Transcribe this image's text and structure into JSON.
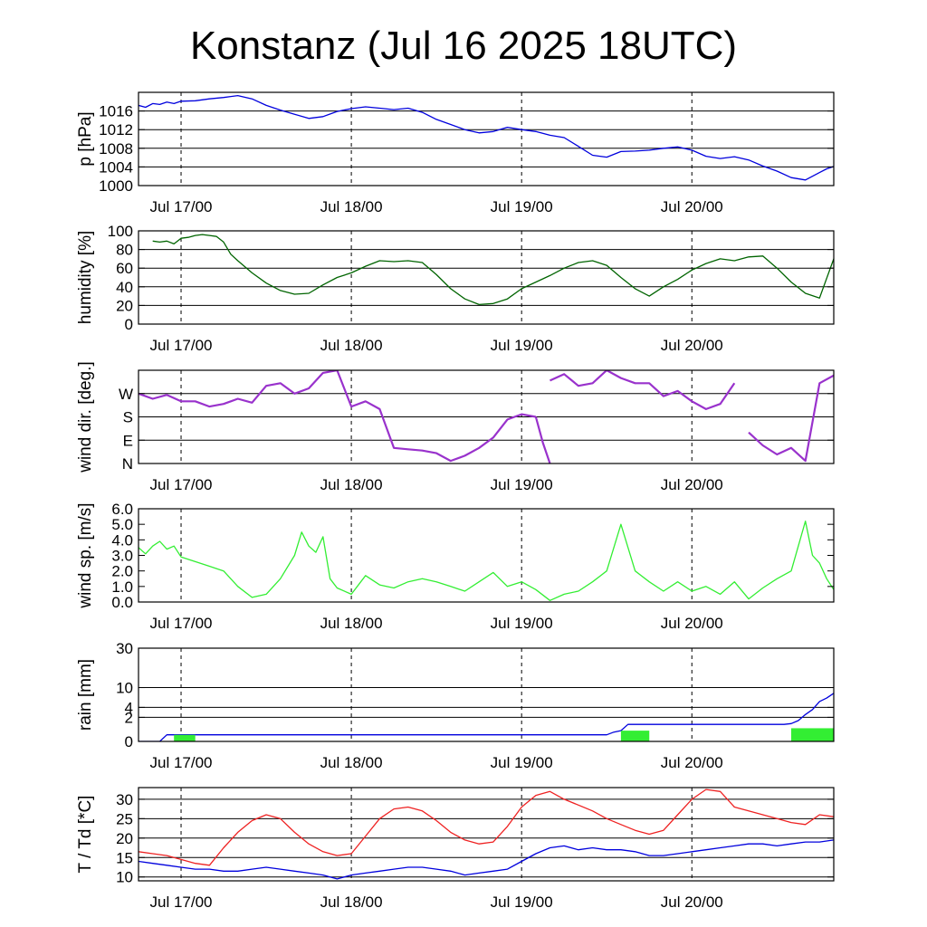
{
  "title": "Konstanz (Jul 16 2025 18UTC)",
  "colors": {
    "pressure": "#0000dd",
    "humidity": "#006400",
    "wind_dir": "#9932cc",
    "wind_speed": "#33ee33",
    "rain_accum": "#0000dd",
    "rain_bars": "#33ee33",
    "temperature": "#ee2222",
    "dewpoint": "#0000dd",
    "grid": "#000000"
  },
  "chart_data": [
    {
      "id": "pressure",
      "type": "line",
      "ylabel": "p [hPa]",
      "ylim": [
        1000,
        1020
      ],
      "yticks": [
        1000,
        1004,
        1008,
        1012,
        1016
      ],
      "ytick_labels": [
        "1000",
        "1004",
        "1008",
        "1012",
        "1016"
      ],
      "grid": "horizontal",
      "xlabels": [
        "Jul 17/00",
        "Jul 18/00",
        "Jul 19/00",
        "Jul 20/00"
      ],
      "series": [
        {
          "color": "#0000dd",
          "x": [
            -6,
            -5,
            -4,
            -3,
            -2,
            -1,
            0,
            2,
            4,
            6,
            8,
            10,
            12,
            14,
            16,
            18,
            20,
            22,
            24,
            26,
            28,
            30,
            32,
            34,
            36,
            38,
            40,
            42,
            44,
            46,
            48,
            50,
            52,
            54,
            56,
            58,
            60,
            62,
            64,
            66,
            68,
            70,
            72,
            74,
            76,
            78,
            80,
            82,
            84,
            86,
            88,
            90,
            91,
            92
          ],
          "y": [
            1017.2,
            1016.8,
            1017.6,
            1017.4,
            1017.9,
            1017.6,
            1018.1,
            1018.2,
            1018.6,
            1018.9,
            1019.3,
            1018.6,
            1017.2,
            1016.2,
            1015.3,
            1014.4,
            1014.8,
            1015.9,
            1016.5,
            1016.9,
            1016.6,
            1016.3,
            1016.6,
            1015.7,
            1014.2,
            1013.1,
            1012.0,
            1011.3,
            1011.6,
            1012.5,
            1012.0,
            1011.6,
            1010.8,
            1010.3,
            1008.4,
            1006.5,
            1006.1,
            1007.3,
            1007.4,
            1007.6,
            1008.0,
            1008.3,
            1007.6,
            1006.3,
            1005.8,
            1006.2,
            1005.5,
            1004.2,
            1003.1,
            1001.7,
            1001.2,
            1002.8,
            1003.6,
            1004.1
          ]
        }
      ]
    },
    {
      "id": "humidity",
      "type": "line",
      "ylabel": "humidity [%]",
      "ylim": [
        0,
        100
      ],
      "yticks": [
        0,
        20,
        40,
        60,
        80,
        100
      ],
      "ytick_labels": [
        "0",
        "20",
        "40",
        "60",
        "80",
        "100"
      ],
      "grid": "horizontal",
      "xlabels": [
        "Jul 17/00",
        "Jul 18/00",
        "Jul 19/00",
        "Jul 20/00"
      ],
      "series": [
        {
          "color": "#006400",
          "x": [
            -4,
            -3,
            -2,
            -1,
            0,
            1,
            2,
            3,
            4,
            5,
            6,
            7,
            8,
            10,
            12,
            14,
            16,
            18,
            20,
            22,
            24,
            26,
            28,
            30,
            32,
            34,
            36,
            38,
            40,
            42,
            44,
            46,
            48,
            50,
            52,
            54,
            56,
            58,
            60,
            62,
            64,
            66,
            68,
            70,
            72,
            74,
            76,
            78,
            80,
            82,
            84,
            86,
            88,
            90,
            92
          ],
          "y": [
            89,
            88,
            89,
            86,
            92,
            93,
            95,
            96,
            95,
            94,
            88,
            75,
            68,
            55,
            44,
            36,
            32,
            33,
            42,
            50,
            55,
            62,
            68,
            67,
            68,
            66,
            53,
            38,
            27,
            21,
            22,
            27,
            38,
            45,
            52,
            60,
            66,
            68,
            63,
            50,
            38,
            30,
            40,
            48,
            58,
            65,
            70,
            68,
            72,
            73,
            60,
            45,
            33,
            28,
            70
          ]
        }
      ]
    },
    {
      "id": "wind_direction",
      "type": "scatter",
      "ylabel": "wind dir. [deg.]",
      "ylim": [
        0,
        360
      ],
      "yticks": [
        0,
        90,
        180,
        270
      ],
      "ytick_labels": [
        "N",
        "E",
        "S",
        "W"
      ],
      "grid": "horizontal",
      "xlabels": [
        "Jul 17/00",
        "Jul 18/00",
        "Jul 19/00",
        "Jul 20/00"
      ],
      "series": [
        {
          "color": "#9932cc",
          "segments": [
            {
              "x": [
                -6,
                -4,
                -2,
                0,
                2,
                4,
                6,
                8,
                10,
                12,
                14,
                16,
                18,
                20,
                22,
                24,
                26,
                28,
                30,
                32,
                34,
                36,
                38,
                40,
                42,
                44,
                46,
                48,
                50
              ],
              "y": [
                270,
                250,
                265,
                240,
                240,
                220,
                230,
                250,
                235,
                300,
                310,
                270,
                290,
                350,
                360,
                220,
                240,
                210,
                60,
                55,
                50,
                40,
                10,
                30,
                60,
                100,
                170,
                190,
                180
              ]
            },
            {
              "x": [
                50,
                51,
                52
              ],
              "y": [
                180,
                80,
                0
              ]
            },
            {
              "x": [
                52,
                54,
                56,
                58,
                60,
                62,
                64,
                66,
                68,
                70,
                72,
                74,
                76,
                78
              ],
              "y": [
                320,
                345,
                300,
                310,
                360,
                330,
                310,
                310,
                260,
                280,
                240,
                210,
                230,
                310
              ]
            },
            {
              "x": [
                80,
                82,
                84,
                86,
                88,
                90,
                92
              ],
              "y": [
                120,
                70,
                35,
                60,
                10,
                310,
                340
              ]
            }
          ]
        }
      ]
    },
    {
      "id": "wind_speed",
      "type": "line",
      "ylabel": "wind sp. [m/s]",
      "ylim": [
        0,
        6
      ],
      "yticks": [
        0,
        1,
        2,
        3,
        4,
        5,
        6
      ],
      "ytick_labels": [
        "0.0",
        "1.0",
        "2.0",
        "3.0",
        "4.0",
        "5.0",
        "6.0"
      ],
      "grid": "none",
      "xlabels": [
        "Jul 17/00",
        "Jul 18/00",
        "Jul 19/00",
        "Jul 20/00"
      ],
      "series": [
        {
          "color": "#33ee33",
          "x": [
            -6,
            -5,
            -4,
            -3,
            -2,
            -1,
            0,
            2,
            4,
            6,
            8,
            10,
            12,
            14,
            16,
            17,
            18,
            19,
            20,
            21,
            22,
            24,
            26,
            28,
            30,
            32,
            34,
            36,
            38,
            40,
            42,
            44,
            46,
            48,
            50,
            52,
            54,
            56,
            58,
            60,
            62,
            64,
            66,
            68,
            70,
            72,
            74,
            76,
            78,
            80,
            82,
            84,
            86,
            88,
            89,
            90,
            91,
            92
          ],
          "y": [
            3.5,
            3.1,
            3.6,
            3.9,
            3.4,
            3.6,
            2.9,
            2.6,
            2.3,
            2.0,
            1.0,
            0.3,
            0.5,
            1.5,
            3.0,
            4.5,
            3.6,
            3.2,
            4.2,
            1.5,
            0.9,
            0.5,
            1.7,
            1.1,
            0.9,
            1.3,
            1.5,
            1.3,
            1.0,
            0.7,
            1.3,
            1.9,
            1.0,
            1.3,
            0.8,
            0.1,
            0.5,
            0.7,
            1.3,
            2.0,
            5.0,
            2.0,
            1.3,
            0.7,
            1.3,
            0.7,
            1.0,
            0.5,
            1.3,
            0.2,
            0.9,
            1.5,
            2.0,
            5.2,
            3.0,
            2.5,
            1.5,
            0.8
          ]
        }
      ]
    },
    {
      "id": "rain",
      "type": "line",
      "ylabel": "rain [mm]",
      "ylim": [
        0,
        30
      ],
      "yticks": [
        0,
        2,
        4,
        10,
        30
      ],
      "ytick_labels": [
        "0",
        "2",
        "4",
        "10",
        "30"
      ],
      "scale": "sqrt",
      "grid": "horizontal",
      "xlabels": [
        "Jul 17/00",
        "Jul 18/00",
        "Jul 19/00",
        "Jul 20/00"
      ],
      "series": [
        {
          "color": "#0000dd",
          "x": [
            -6,
            -3,
            -2,
            0,
            60,
            61,
            62,
            63,
            64,
            85,
            86,
            87,
            88,
            89,
            90,
            91,
            92
          ],
          "y": [
            0,
            0,
            0.15,
            0.15,
            0.15,
            0.3,
            0.4,
            1.0,
            1.0,
            1.0,
            1.1,
            1.5,
            2.5,
            3.5,
            5.5,
            6.5,
            8.0
          ]
        },
        {
          "type": "bar",
          "color": "#33ee33",
          "x0": [
            -1,
            62,
            86
          ],
          "x1": [
            2,
            66,
            92
          ],
          "y": [
            0.15,
            0.4,
            0.6
          ]
        }
      ]
    },
    {
      "id": "temperature",
      "type": "line",
      "ylabel": "T / Td [*C]",
      "ylim": [
        9,
        33
      ],
      "yticks": [
        10,
        15,
        20,
        25,
        30
      ],
      "ytick_labels": [
        "10",
        "15",
        "20",
        "25",
        "30"
      ],
      "grid": "horizontal",
      "xlabels": [
        "Jul 17/00",
        "Jul 18/00",
        "Jul 19/00",
        "Jul 20/00"
      ],
      "series": [
        {
          "name": "T",
          "color": "#ee2222",
          "x": [
            -6,
            -4,
            -2,
            0,
            2,
            4,
            6,
            8,
            10,
            12,
            14,
            16,
            18,
            20,
            22,
            24,
            26,
            28,
            30,
            32,
            34,
            36,
            38,
            40,
            42,
            44,
            46,
            48,
            50,
            52,
            54,
            56,
            58,
            60,
            62,
            64,
            66,
            68,
            70,
            72,
            74,
            76,
            78,
            80,
            82,
            84,
            86,
            88,
            90,
            92
          ],
          "y": [
            16.5,
            16.0,
            15.5,
            14.5,
            13.5,
            13.0,
            17.5,
            21.5,
            24.5,
            26.0,
            25.0,
            21.5,
            18.5,
            16.5,
            15.5,
            16.0,
            20.5,
            25.0,
            27.5,
            28.0,
            27.0,
            24.5,
            21.5,
            19.5,
            18.5,
            19.0,
            23.0,
            28.0,
            31.0,
            32.0,
            30.0,
            28.5,
            27.0,
            25.0,
            23.5,
            22.0,
            21.0,
            22.0,
            26.0,
            30.0,
            32.5,
            32.0,
            28.0,
            27.0,
            26.0,
            25.0,
            24.0,
            23.5,
            26.0,
            25.5
          ]
        },
        {
          "name": "Td",
          "color": "#0000dd",
          "x": [
            -6,
            -4,
            -2,
            0,
            2,
            4,
            6,
            8,
            10,
            12,
            14,
            16,
            18,
            20,
            22,
            24,
            26,
            28,
            30,
            32,
            34,
            36,
            38,
            40,
            42,
            44,
            46,
            48,
            50,
            52,
            54,
            56,
            58,
            60,
            62,
            64,
            66,
            68,
            70,
            72,
            74,
            76,
            78,
            80,
            82,
            84,
            86,
            88,
            90,
            92
          ],
          "y": [
            14.0,
            13.5,
            13.0,
            12.5,
            12.0,
            12.0,
            11.5,
            11.5,
            12.0,
            12.5,
            12.0,
            11.5,
            11.0,
            10.5,
            9.5,
            10.5,
            11.0,
            11.5,
            12.0,
            12.5,
            12.5,
            12.0,
            11.5,
            10.5,
            11.0,
            11.5,
            12.0,
            14.0,
            16.0,
            17.5,
            18.0,
            17.0,
            17.5,
            17.0,
            17.0,
            16.5,
            15.5,
            15.5,
            16.0,
            16.5,
            17.0,
            17.5,
            18.0,
            18.5,
            18.5,
            18.0,
            18.5,
            19.0,
            19.0,
            19.5
          ]
        }
      ]
    }
  ]
}
